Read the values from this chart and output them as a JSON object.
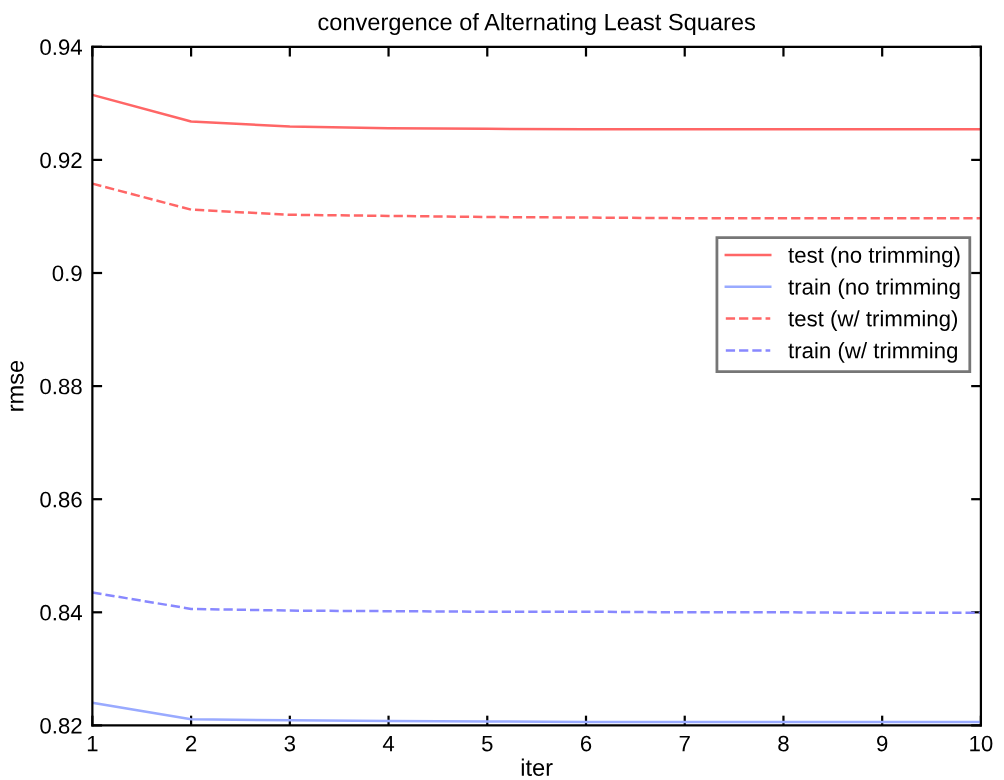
{
  "chart_data": {
    "type": "line",
    "title": "convergence of Alternating Least Squares",
    "xlabel": "iter",
    "ylabel": "rmse",
    "x": [
      1,
      2,
      3,
      4,
      5,
      6,
      7,
      8,
      9,
      10
    ],
    "series": [
      {
        "name": "test (no trimming)",
        "color": "#ff6666",
        "line_style": "solid",
        "values": [
          0.9315,
          0.9268,
          0.9259,
          0.9256,
          0.9255,
          0.9254,
          0.9254,
          0.9254,
          0.9254,
          0.9254
        ]
      },
      {
        "name": "train (no trimming",
        "color": "#99aaff",
        "line_style": "solid",
        "values": [
          0.824,
          0.8211,
          0.8209,
          0.8208,
          0.8207,
          0.8206,
          0.8206,
          0.8206,
          0.8206,
          0.8206
        ]
      },
      {
        "name": "test (w/ trimming)",
        "color": "#ff6666",
        "line_style": "dashed",
        "values": [
          0.9158,
          0.9112,
          0.9103,
          0.9101,
          0.9099,
          0.9098,
          0.9097,
          0.9097,
          0.9097,
          0.9097
        ]
      },
      {
        "name": "train (w/ trimming",
        "color": "#8888ff",
        "line_style": "dashed",
        "values": [
          0.8435,
          0.8406,
          0.8403,
          0.8402,
          0.8401,
          0.8401,
          0.84,
          0.84,
          0.8399,
          0.8399
        ]
      }
    ],
    "xlim": [
      1,
      10
    ],
    "xticks": [
      1,
      2,
      3,
      4,
      5,
      6,
      7,
      8,
      9,
      10
    ],
    "ylim": [
      0.82,
      0.94
    ],
    "yticks": [
      0.82,
      0.84,
      0.86,
      0.88,
      0.9,
      0.92,
      0.94
    ],
    "grid": false,
    "legend": "right",
    "marker": "none"
  }
}
